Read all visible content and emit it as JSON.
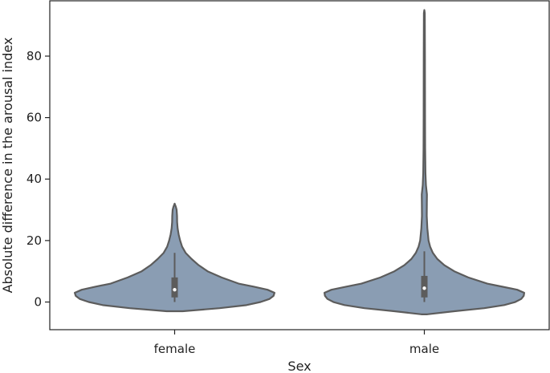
{
  "chart_data": {
    "type": "violin",
    "title": "",
    "xlabel": "Sex",
    "ylabel": "Absolute difference in the arousal index",
    "categories": [
      "female",
      "male"
    ],
    "ylim": [
      -9,
      98
    ],
    "yticks": [
      0,
      20,
      40,
      60,
      80
    ],
    "grid": false,
    "fill_color": "#8a9db3",
    "edge_color": "#5c5c5c",
    "violins": [
      {
        "category": "female",
        "median": 4,
        "q1": 1.5,
        "q3": 8,
        "whisker_low": 0,
        "whisker_high": 16,
        "density": [
          [
            -3,
            0.08
          ],
          [
            -2,
            0.45
          ],
          [
            -1,
            0.72
          ],
          [
            0,
            0.86
          ],
          [
            1,
            0.95
          ],
          [
            2,
            0.99
          ],
          [
            3,
            1.0
          ],
          [
            4,
            0.93
          ],
          [
            5,
            0.79
          ],
          [
            6,
            0.64
          ],
          [
            8,
            0.47
          ],
          [
            10,
            0.33
          ],
          [
            12,
            0.24
          ],
          [
            14,
            0.17
          ],
          [
            16,
            0.11
          ],
          [
            18,
            0.075
          ],
          [
            20,
            0.055
          ],
          [
            22,
            0.04
          ],
          [
            24,
            0.03
          ],
          [
            26,
            0.025
          ],
          [
            28,
            0.024
          ],
          [
            30,
            0.02
          ],
          [
            31,
            0.012
          ],
          [
            32,
            0.0
          ]
        ]
      },
      {
        "category": "male",
        "median": 4.5,
        "q1": 1.5,
        "q3": 8.5,
        "whisker_low": 0,
        "whisker_high": 16.5,
        "density": [
          [
            -4,
            0.03
          ],
          [
            -3,
            0.3
          ],
          [
            -2,
            0.6
          ],
          [
            -1,
            0.8
          ],
          [
            0,
            0.91
          ],
          [
            1,
            0.97
          ],
          [
            2,
            0.995
          ],
          [
            3,
            1.0
          ],
          [
            4,
            0.93
          ],
          [
            5,
            0.78
          ],
          [
            6,
            0.63
          ],
          [
            8,
            0.44
          ],
          [
            10,
            0.3
          ],
          [
            12,
            0.2
          ],
          [
            14,
            0.13
          ],
          [
            16,
            0.085
          ],
          [
            18,
            0.058
          ],
          [
            20,
            0.042
          ],
          [
            24,
            0.03
          ],
          [
            28,
            0.024
          ],
          [
            32,
            0.025
          ],
          [
            35,
            0.026
          ],
          [
            38,
            0.016
          ],
          [
            42,
            0.011
          ],
          [
            50,
            0.008
          ],
          [
            60,
            0.007
          ],
          [
            70,
            0.0065
          ],
          [
            80,
            0.006
          ],
          [
            90,
            0.005
          ],
          [
            94,
            0.0045
          ],
          [
            95,
            0.0
          ]
        ]
      }
    ]
  }
}
